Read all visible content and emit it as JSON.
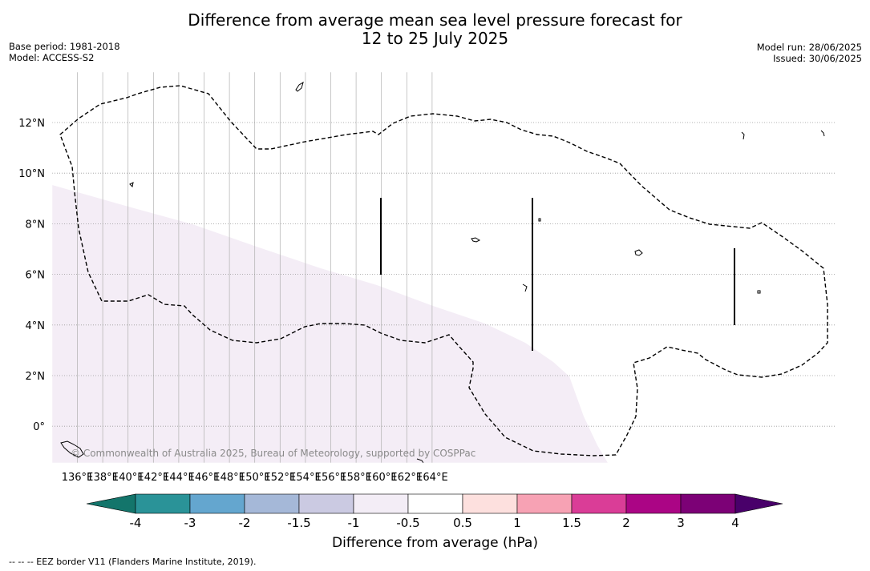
{
  "header": {
    "title_line1": "Difference from average mean sea level pressure forecast for",
    "title_line2": "12 to 25 July 2025",
    "base_period": "Base period: 1981-2018",
    "model": "Model: ACCESS-S2",
    "model_run": "Model run: 28/06/2025",
    "issued": "Issued: 30/06/2025"
  },
  "map": {
    "lon_ticks": [
      "136°E",
      "138°E",
      "140°E",
      "142°E",
      "144°E",
      "146°E",
      "148°E",
      "150°E",
      "152°E",
      "154°E",
      "156°E",
      "158°E",
      "160°E",
      "162°E",
      "164°E"
    ],
    "lat_ticks": [
      "12°N",
      "10°N",
      "8°N",
      "6°N",
      "4°N",
      "2°N",
      "0°"
    ],
    "copyright": "© Commonwealth of Australia 2025, Bureau of Meteorology, supported by COSPPac",
    "anomaly_fill_color": "#f4edf6"
  },
  "colorbar": {
    "colors": [
      "#13756b",
      "#2a9398",
      "#64a6cf",
      "#a5b8d8",
      "#cbcae2",
      "#f3edf6",
      "#ffffff",
      "#fde0de",
      "#f7a2b4",
      "#da3d97",
      "#ab0585",
      "#7c0176",
      "#49006a"
    ],
    "tick_labels": [
      "-4",
      "-3",
      "-2",
      "-1.5",
      "-1",
      "-0.5",
      "0.5",
      "1",
      "1.5",
      "2",
      "3",
      "4"
    ],
    "label": "Difference from average (hPa)"
  },
  "footnote": "--  --  -- EEZ border V11 (Flanders Marine Institute, 2019)."
}
